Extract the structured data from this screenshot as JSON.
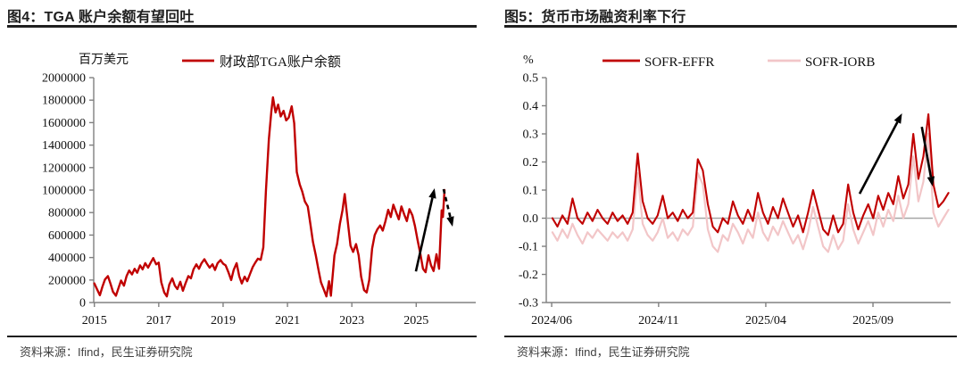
{
  "panels": [
    {
      "title": "图4：TGA 账户余额有望回吐",
      "source": "资料来源：Ifind，民生证券研究院"
    },
    {
      "title": "图5：货币市场融资利率下行",
      "source": "资料来源：Ifind，民生证券研究院"
    }
  ],
  "colors": {
    "dark_red": "#C00000",
    "light_pink": "#F2C6C8",
    "axis_gray": "#808080",
    "zero_line_gray": "#A6A6A6",
    "annotation_black": "#000000",
    "rule_dark": "#1F1F1F",
    "source_gray": "#404040"
  },
  "chart_data": [
    {
      "type": "line",
      "title": "图4：TGA 账户余额有望回吐",
      "unit_label": "百万美元",
      "legend_position": "top",
      "legend": [
        {
          "name": "财政部TGA账户余额",
          "color": "#C00000"
        }
      ],
      "xlim": [
        2014.98,
        2026.85
      ],
      "ylim": [
        0,
        2000000
      ],
      "yticks": [
        {
          "v": 2000000,
          "label": "2000000"
        },
        {
          "v": 1800000,
          "label": "1800000"
        },
        {
          "v": 1600000,
          "label": "1600000"
        },
        {
          "v": 1400000,
          "label": "1400000"
        },
        {
          "v": 1200000,
          "label": "1200000"
        },
        {
          "v": 1000000,
          "label": "1000000"
        },
        {
          "v": 800000,
          "label": "800000"
        },
        {
          "v": 600000,
          "label": "600000"
        },
        {
          "v": 400000,
          "label": "400000"
        },
        {
          "v": 200000,
          "label": "200000"
        },
        {
          "v": 0,
          "label": "0"
        }
      ],
      "xticks": [
        {
          "v": 2015,
          "label": "2015"
        },
        {
          "v": 2017,
          "label": "2017"
        },
        {
          "v": 2019,
          "label": "2019"
        },
        {
          "v": 2021,
          "label": "2021"
        },
        {
          "v": 2023,
          "label": "2023"
        },
        {
          "v": 2025,
          "label": "2025"
        }
      ],
      "zero_line": false,
      "series": [
        {
          "name": "财政部TGA账户余额",
          "color": "#C00000",
          "width": 2.4,
          "points": [
            [
              2015.0,
              170000
            ],
            [
              2015.08,
              120000
            ],
            [
              2015.17,
              65000
            ],
            [
              2015.25,
              140000
            ],
            [
              2015.33,
              205000
            ],
            [
              2015.42,
              235000
            ],
            [
              2015.5,
              170000
            ],
            [
              2015.58,
              95000
            ],
            [
              2015.67,
              60000
            ],
            [
              2015.75,
              130000
            ],
            [
              2015.83,
              195000
            ],
            [
              2015.92,
              150000
            ],
            [
              2016.0,
              235000
            ],
            [
              2016.08,
              285000
            ],
            [
              2016.17,
              250000
            ],
            [
              2016.25,
              300000
            ],
            [
              2016.33,
              265000
            ],
            [
              2016.42,
              330000
            ],
            [
              2016.5,
              295000
            ],
            [
              2016.58,
              350000
            ],
            [
              2016.67,
              310000
            ],
            [
              2016.75,
              355000
            ],
            [
              2016.83,
              395000
            ],
            [
              2016.92,
              340000
            ],
            [
              2017.0,
              355000
            ],
            [
              2017.08,
              180000
            ],
            [
              2017.17,
              90000
            ],
            [
              2017.25,
              55000
            ],
            [
              2017.33,
              160000
            ],
            [
              2017.42,
              215000
            ],
            [
              2017.5,
              150000
            ],
            [
              2017.58,
              120000
            ],
            [
              2017.67,
              185000
            ],
            [
              2017.75,
              105000
            ],
            [
              2017.83,
              170000
            ],
            [
              2017.92,
              235000
            ],
            [
              2018.0,
              215000
            ],
            [
              2018.08,
              295000
            ],
            [
              2018.17,
              340000
            ],
            [
              2018.25,
              300000
            ],
            [
              2018.33,
              350000
            ],
            [
              2018.42,
              385000
            ],
            [
              2018.5,
              345000
            ],
            [
              2018.58,
              310000
            ],
            [
              2018.67,
              340000
            ],
            [
              2018.75,
              290000
            ],
            [
              2018.83,
              350000
            ],
            [
              2018.92,
              378000
            ],
            [
              2019.0,
              345000
            ],
            [
              2019.08,
              330000
            ],
            [
              2019.17,
              265000
            ],
            [
              2019.25,
              200000
            ],
            [
              2019.33,
              290000
            ],
            [
              2019.42,
              350000
            ],
            [
              2019.5,
              235000
            ],
            [
              2019.58,
              170000
            ],
            [
              2019.67,
              230000
            ],
            [
              2019.75,
              190000
            ],
            [
              2019.83,
              250000
            ],
            [
              2019.92,
              315000
            ],
            [
              2020.0,
              355000
            ],
            [
              2020.08,
              390000
            ],
            [
              2020.17,
              380000
            ],
            [
              2020.25,
              490000
            ],
            [
              2020.33,
              990000
            ],
            [
              2020.42,
              1450000
            ],
            [
              2020.5,
              1700000
            ],
            [
              2020.55,
              1825000
            ],
            [
              2020.63,
              1690000
            ],
            [
              2020.71,
              1760000
            ],
            [
              2020.79,
              1655000
            ],
            [
              2020.88,
              1705000
            ],
            [
              2020.96,
              1620000
            ],
            [
              2021.04,
              1645000
            ],
            [
              2021.13,
              1745000
            ],
            [
              2021.21,
              1595000
            ],
            [
              2021.29,
              1160000
            ],
            [
              2021.38,
              1050000
            ],
            [
              2021.46,
              985000
            ],
            [
              2021.54,
              900000
            ],
            [
              2021.63,
              855000
            ],
            [
              2021.71,
              700000
            ],
            [
              2021.79,
              540000
            ],
            [
              2021.88,
              420000
            ],
            [
              2021.96,
              295000
            ],
            [
              2022.04,
              180000
            ],
            [
              2022.13,
              115000
            ],
            [
              2022.21,
              55000
            ],
            [
              2022.29,
              190000
            ],
            [
              2022.35,
              60000
            ],
            [
              2022.46,
              420000
            ],
            [
              2022.54,
              520000
            ],
            [
              2022.63,
              700000
            ],
            [
              2022.71,
              820000
            ],
            [
              2022.78,
              965000
            ],
            [
              2022.88,
              700000
            ],
            [
              2022.96,
              505000
            ],
            [
              2023.04,
              450000
            ],
            [
              2023.13,
              520000
            ],
            [
              2023.21,
              420000
            ],
            [
              2023.29,
              230000
            ],
            [
              2023.38,
              110000
            ],
            [
              2023.46,
              90000
            ],
            [
              2023.54,
              200000
            ],
            [
              2023.63,
              480000
            ],
            [
              2023.71,
              600000
            ],
            [
              2023.79,
              650000
            ],
            [
              2023.88,
              685000
            ],
            [
              2023.96,
              640000
            ],
            [
              2024.04,
              720000
            ],
            [
              2024.13,
              825000
            ],
            [
              2024.21,
              760000
            ],
            [
              2024.29,
              870000
            ],
            [
              2024.38,
              800000
            ],
            [
              2024.46,
              740000
            ],
            [
              2024.54,
              855000
            ],
            [
              2024.63,
              780000
            ],
            [
              2024.71,
              725000
            ],
            [
              2024.79,
              830000
            ],
            [
              2024.88,
              775000
            ],
            [
              2024.96,
              680000
            ],
            [
              2025.04,
              560000
            ],
            [
              2025.13,
              430000
            ],
            [
              2025.21,
              300000
            ],
            [
              2025.29,
              270000
            ],
            [
              2025.38,
              420000
            ],
            [
              2025.46,
              330000
            ],
            [
              2025.54,
              280000
            ],
            [
              2025.63,
              430000
            ],
            [
              2025.71,
              300000
            ],
            [
              2025.79,
              820000
            ],
            [
              2025.83,
              760000
            ],
            [
              2025.88,
              1000000
            ]
          ]
        }
      ],
      "annotations": [
        {
          "from": [
            2024.99,
            277000
          ],
          "to": [
            2025.57,
            1016000
          ],
          "dashed": false
        },
        {
          "from": [
            2025.85,
            1008000
          ],
          "to": [
            2026.13,
            675000
          ],
          "dashed": true
        }
      ]
    },
    {
      "type": "line",
      "title": "图5：货币市场融资利率下行",
      "unit_label": "%",
      "legend_position": "top",
      "legend": [
        {
          "name": "SOFR-EFFR",
          "color": "#C00000"
        },
        {
          "name": "SOFR-IORB",
          "color": "#F2C6C8"
        }
      ],
      "xlim": [
        2024.396,
        2025.969
      ],
      "ylim": [
        -0.3,
        0.5
      ],
      "yticks": [
        {
          "v": 0.5,
          "label": "0.5"
        },
        {
          "v": 0.4,
          "label": "0.4"
        },
        {
          "v": 0.3,
          "label": "0.3"
        },
        {
          "v": 0.2,
          "label": "0.2"
        },
        {
          "v": 0.1,
          "label": "0.1"
        },
        {
          "v": 0.0,
          "label": "0.0"
        },
        {
          "v": -0.1,
          "label": "-0.1"
        },
        {
          "v": -0.2,
          "label": "-0.2"
        },
        {
          "v": -0.3,
          "label": "-0.3"
        }
      ],
      "xticks": [
        {
          "v": 2024.417,
          "label": "2024/06"
        },
        {
          "v": 2024.833,
          "label": "2024/11"
        },
        {
          "v": 2025.25,
          "label": "2025/04"
        },
        {
          "v": 2025.667,
          "label": "2025/09"
        }
      ],
      "zero_line": true,
      "series": [
        {
          "name": "SOFR-IORB",
          "color": "#F2C6C8",
          "width": 2.2,
          "x_start": 2024.42,
          "x_step": 0.0195,
          "values": [
            -0.05,
            -0.08,
            -0.04,
            -0.07,
            -0.02,
            -0.06,
            -0.09,
            -0.05,
            -0.07,
            -0.04,
            -0.06,
            -0.08,
            -0.05,
            -0.07,
            -0.05,
            -0.08,
            -0.04,
            0.16,
            -0.02,
            -0.06,
            -0.08,
            -0.05,
            0.0,
            -0.07,
            -0.05,
            -0.08,
            -0.04,
            -0.06,
            -0.03,
            0.16,
            0.12,
            -0.04,
            -0.1,
            -0.12,
            -0.06,
            -0.08,
            -0.02,
            -0.05,
            -0.09,
            -0.04,
            -0.07,
            0.02,
            -0.05,
            -0.08,
            -0.03,
            -0.06,
            -0.01,
            -0.05,
            -0.09,
            -0.06,
            -0.11,
            -0.05,
            0.04,
            -0.03,
            -0.1,
            -0.12,
            -0.06,
            -0.11,
            -0.08,
            0.05,
            -0.04,
            -0.09,
            -0.05,
            -0.01,
            -0.06,
            0.02,
            -0.03,
            0.03,
            -0.01,
            0.08,
            0.0,
            0.05,
            0.22,
            0.06,
            0.13,
            0.3,
            0.02,
            -0.03,
            0.0,
            0.03
          ]
        },
        {
          "name": "SOFR-EFFR",
          "color": "#C00000",
          "width": 2.1,
          "x_start": 2024.42,
          "x_step": 0.0195,
          "values": [
            0.0,
            -0.03,
            0.01,
            -0.02,
            0.07,
            0.0,
            -0.02,
            0.02,
            -0.01,
            0.03,
            0.0,
            -0.02,
            0.02,
            -0.01,
            0.01,
            -0.02,
            0.02,
            0.23,
            0.06,
            0.0,
            -0.02,
            0.01,
            0.08,
            0.0,
            0.02,
            -0.01,
            0.03,
            0.0,
            0.02,
            0.21,
            0.17,
            0.05,
            -0.03,
            -0.05,
            0.0,
            -0.02,
            0.06,
            0.01,
            -0.02,
            0.03,
            -0.01,
            0.09,
            0.02,
            -0.02,
            0.04,
            0.0,
            0.07,
            0.02,
            -0.03,
            0.01,
            -0.05,
            0.02,
            0.1,
            0.03,
            -0.04,
            -0.06,
            0.01,
            -0.05,
            -0.02,
            0.12,
            0.02,
            -0.04,
            0.01,
            0.05,
            0.0,
            0.08,
            0.03,
            0.09,
            0.05,
            0.15,
            0.07,
            0.12,
            0.3,
            0.14,
            0.22,
            0.37,
            0.12,
            0.04,
            0.06,
            0.09
          ]
        }
      ],
      "annotations": [
        {
          "from": [
            2025.615,
            0.087
          ],
          "to": [
            2025.78,
            0.373
          ],
          "dashed": false
        },
        {
          "from": [
            2025.857,
            0.325
          ],
          "to": [
            2025.899,
            0.113
          ],
          "dashed": false
        }
      ]
    }
  ]
}
